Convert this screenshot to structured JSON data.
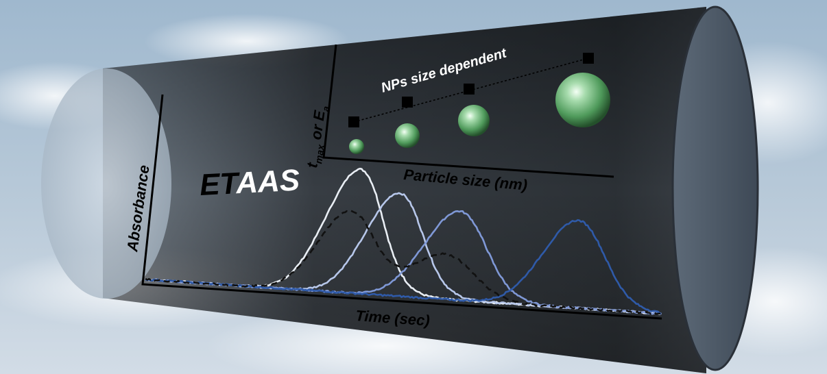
{
  "title": {
    "prefix": "ET",
    "suffix": "AAS"
  },
  "main_plot": {
    "xlabel": "Time (sec)",
    "ylabel": "Absorbance"
  },
  "inset_plot": {
    "xlabel": "Particle size (nm)",
    "ylabel_base": "t",
    "ylabel_sub": "max",
    "ylabel_mid": " or E",
    "ylabel_sub2": "a",
    "annotation": "NPs size dependent"
  },
  "colors": {
    "sky_top": "#9cb6cc",
    "sky_bottom": "#c9d6e2",
    "tube": "#2a2e33",
    "curve_1": "#e9eef4",
    "curve_2": "#b7c7ea",
    "curve_3": "#7f98d6",
    "curve_4": "#2f5aa8",
    "curve_dashed": "#111111",
    "sphere": "#5fa96b"
  },
  "chart_data": {
    "type": "line",
    "title": "",
    "xlabel": "Time (sec)",
    "ylabel": "Absorbance",
    "series": [
      {
        "style": "solid",
        "color": "#e9eef4",
        "peak_time_frac": 0.39,
        "peak_height_frac": 0.88,
        "width_frac": 0.055
      },
      {
        "style": "solid",
        "color": "#b7c7ea",
        "peak_time_frac": 0.47,
        "peak_height_frac": 0.73,
        "width_frac": 0.055
      },
      {
        "style": "solid",
        "color": "#7f98d6",
        "peak_time_frac": 0.59,
        "peak_height_frac": 0.63,
        "width_frac": 0.06
      },
      {
        "style": "solid",
        "color": "#2f5aa8",
        "peak_time_frac": 0.82,
        "peak_height_frac": 0.62,
        "width_frac": 0.06
      },
      {
        "style": "dashed",
        "color": "#111111",
        "peaks": [
          {
            "time_frac": 0.38,
            "height_frac": 0.58,
            "width_frac": 0.055
          },
          {
            "time_frac": 0.57,
            "height_frac": 0.32,
            "width_frac": 0.06
          }
        ]
      }
    ],
    "inset": {
      "type": "scatter",
      "xlabel": "Particle size (nm)",
      "ylabel": "t_max or E_a",
      "annotation": "NPs size dependent",
      "points": [
        {
          "size_rank": 1,
          "y_frac": 0.3
        },
        {
          "size_rank": 2,
          "y_frac": 0.5
        },
        {
          "size_rank": 3,
          "y_frac": 0.62
        },
        {
          "size_rank": 4,
          "y_frac": 0.95
        }
      ],
      "sphere_sizes_rank": [
        1,
        2,
        3,
        4
      ]
    }
  }
}
